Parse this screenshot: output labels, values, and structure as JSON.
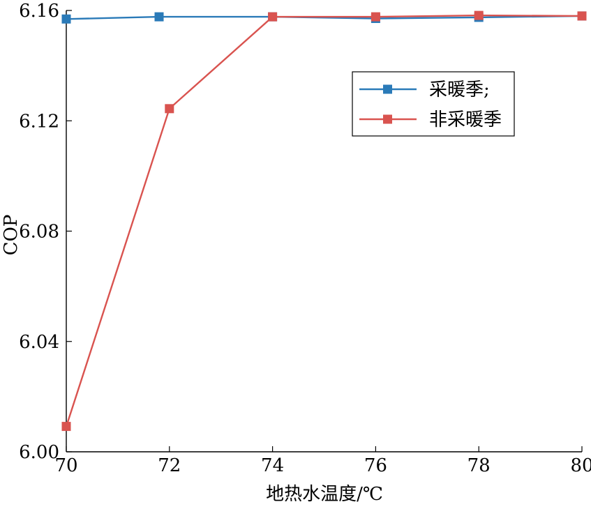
{
  "chart_data": {
    "type": "line",
    "xlabel": "地热水温度/℃",
    "ylabel": "COP",
    "xlim": [
      70,
      80
    ],
    "ylim": [
      6.0,
      6.16
    ],
    "xticks": [
      "70",
      "72",
      "74",
      "76",
      "78",
      "80"
    ],
    "yticks": [
      "6.00",
      "6.04",
      "6.08",
      "6.12",
      "6.16"
    ],
    "grid": false,
    "legend_position": "top-right",
    "series": [
      {
        "name": "采暖季;",
        "color": "#2a7ab8",
        "marker": "square",
        "x": [
          70,
          71.8,
          74,
          76,
          78,
          80
        ],
        "y": [
          6.1569,
          6.1577,
          6.1577,
          6.1571,
          6.1575,
          6.158
        ]
      },
      {
        "name": "非采暖季",
        "color": "#d9534f",
        "marker": "square",
        "x": [
          70,
          72,
          74,
          76,
          78,
          80
        ],
        "y": [
          6.0092,
          6.1244,
          6.1577,
          6.1577,
          6.1582,
          6.158
        ]
      }
    ]
  }
}
